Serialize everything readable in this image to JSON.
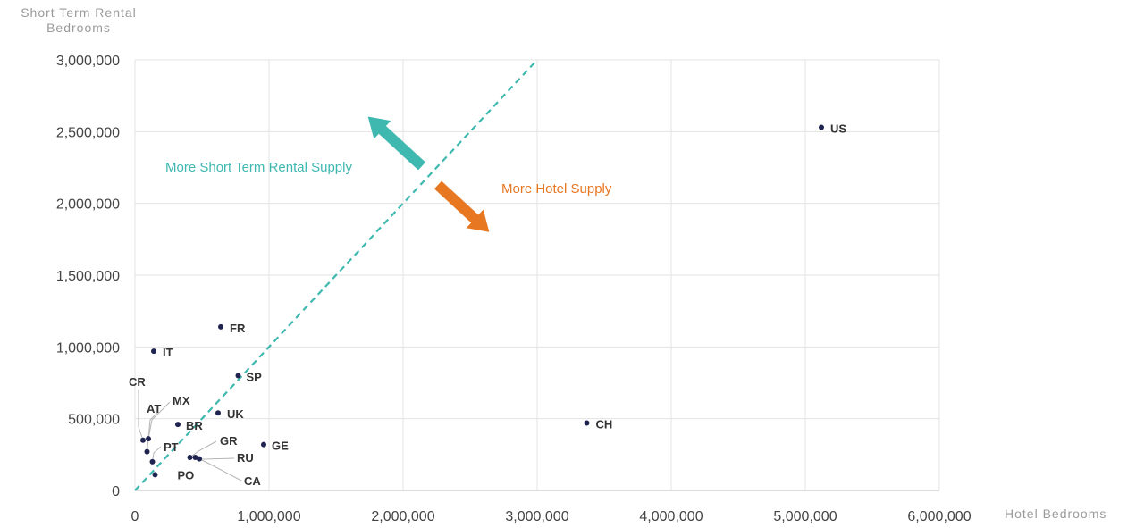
{
  "chart_data": {
    "type": "scatter",
    "title": "",
    "xlabel": "Hotel Bedrooms",
    "ylabel_lines": [
      "Short Term Rental",
      "Bedrooms"
    ],
    "xlim": [
      0,
      6000000
    ],
    "ylim": [
      0,
      3000000
    ],
    "x_ticks": [
      0,
      1000000,
      2000000,
      3000000,
      4000000,
      5000000,
      6000000
    ],
    "x_tick_labels": [
      "0",
      "1,000,000",
      "2,000,000",
      "3,000,000",
      "4,000,000",
      "5,000,000",
      "6,000,000"
    ],
    "y_ticks": [
      0,
      500000,
      1000000,
      1500000,
      2000000,
      2500000,
      3000000
    ],
    "y_tick_labels": [
      "0",
      "500,000",
      "1,000,000",
      "1,500,000",
      "2,000,000",
      "2,500,000",
      "3,000,000"
    ],
    "grid": true,
    "reference_line": {
      "from": [
        0,
        0
      ],
      "to": [
        3000000,
        3000000
      ],
      "style": "dashed",
      "color": "#3fb8b0"
    },
    "annotations": [
      {
        "text": "More Short Term Rental Supply",
        "color": "#3fb8b0"
      },
      {
        "text": "More Hotel Supply",
        "color": "#e87722"
      }
    ],
    "points": [
      {
        "label": "US",
        "x": 5120000,
        "y": 2530000
      },
      {
        "label": "CH",
        "x": 3370000,
        "y": 470000
      },
      {
        "label": "FR",
        "x": 640000,
        "y": 1140000
      },
      {
        "label": "IT",
        "x": 140000,
        "y": 970000
      },
      {
        "label": "SP",
        "x": 770000,
        "y": 800000
      },
      {
        "label": "UK",
        "x": 620000,
        "y": 540000
      },
      {
        "label": "GE",
        "x": 960000,
        "y": 320000
      },
      {
        "label": "BR",
        "x": 320000,
        "y": 460000
      },
      {
        "label": "CR",
        "x": 60000,
        "y": 350000
      },
      {
        "label": "MX",
        "x": 100000,
        "y": 360000
      },
      {
        "label": "AT",
        "x": 90000,
        "y": 270000
      },
      {
        "label": "PT",
        "x": 130000,
        "y": 200000
      },
      {
        "label": "GR",
        "x": 410000,
        "y": 230000
      },
      {
        "label": "RU",
        "x": 450000,
        "y": 230000
      },
      {
        "label": "CA",
        "x": 480000,
        "y": 220000
      },
      {
        "label": "PO",
        "x": 150000,
        "y": 110000
      }
    ],
    "colors": {
      "point": "#1f2350",
      "grid": "#e3e3e3",
      "teal": "#3fb8b0",
      "orange": "#e87722"
    }
  }
}
